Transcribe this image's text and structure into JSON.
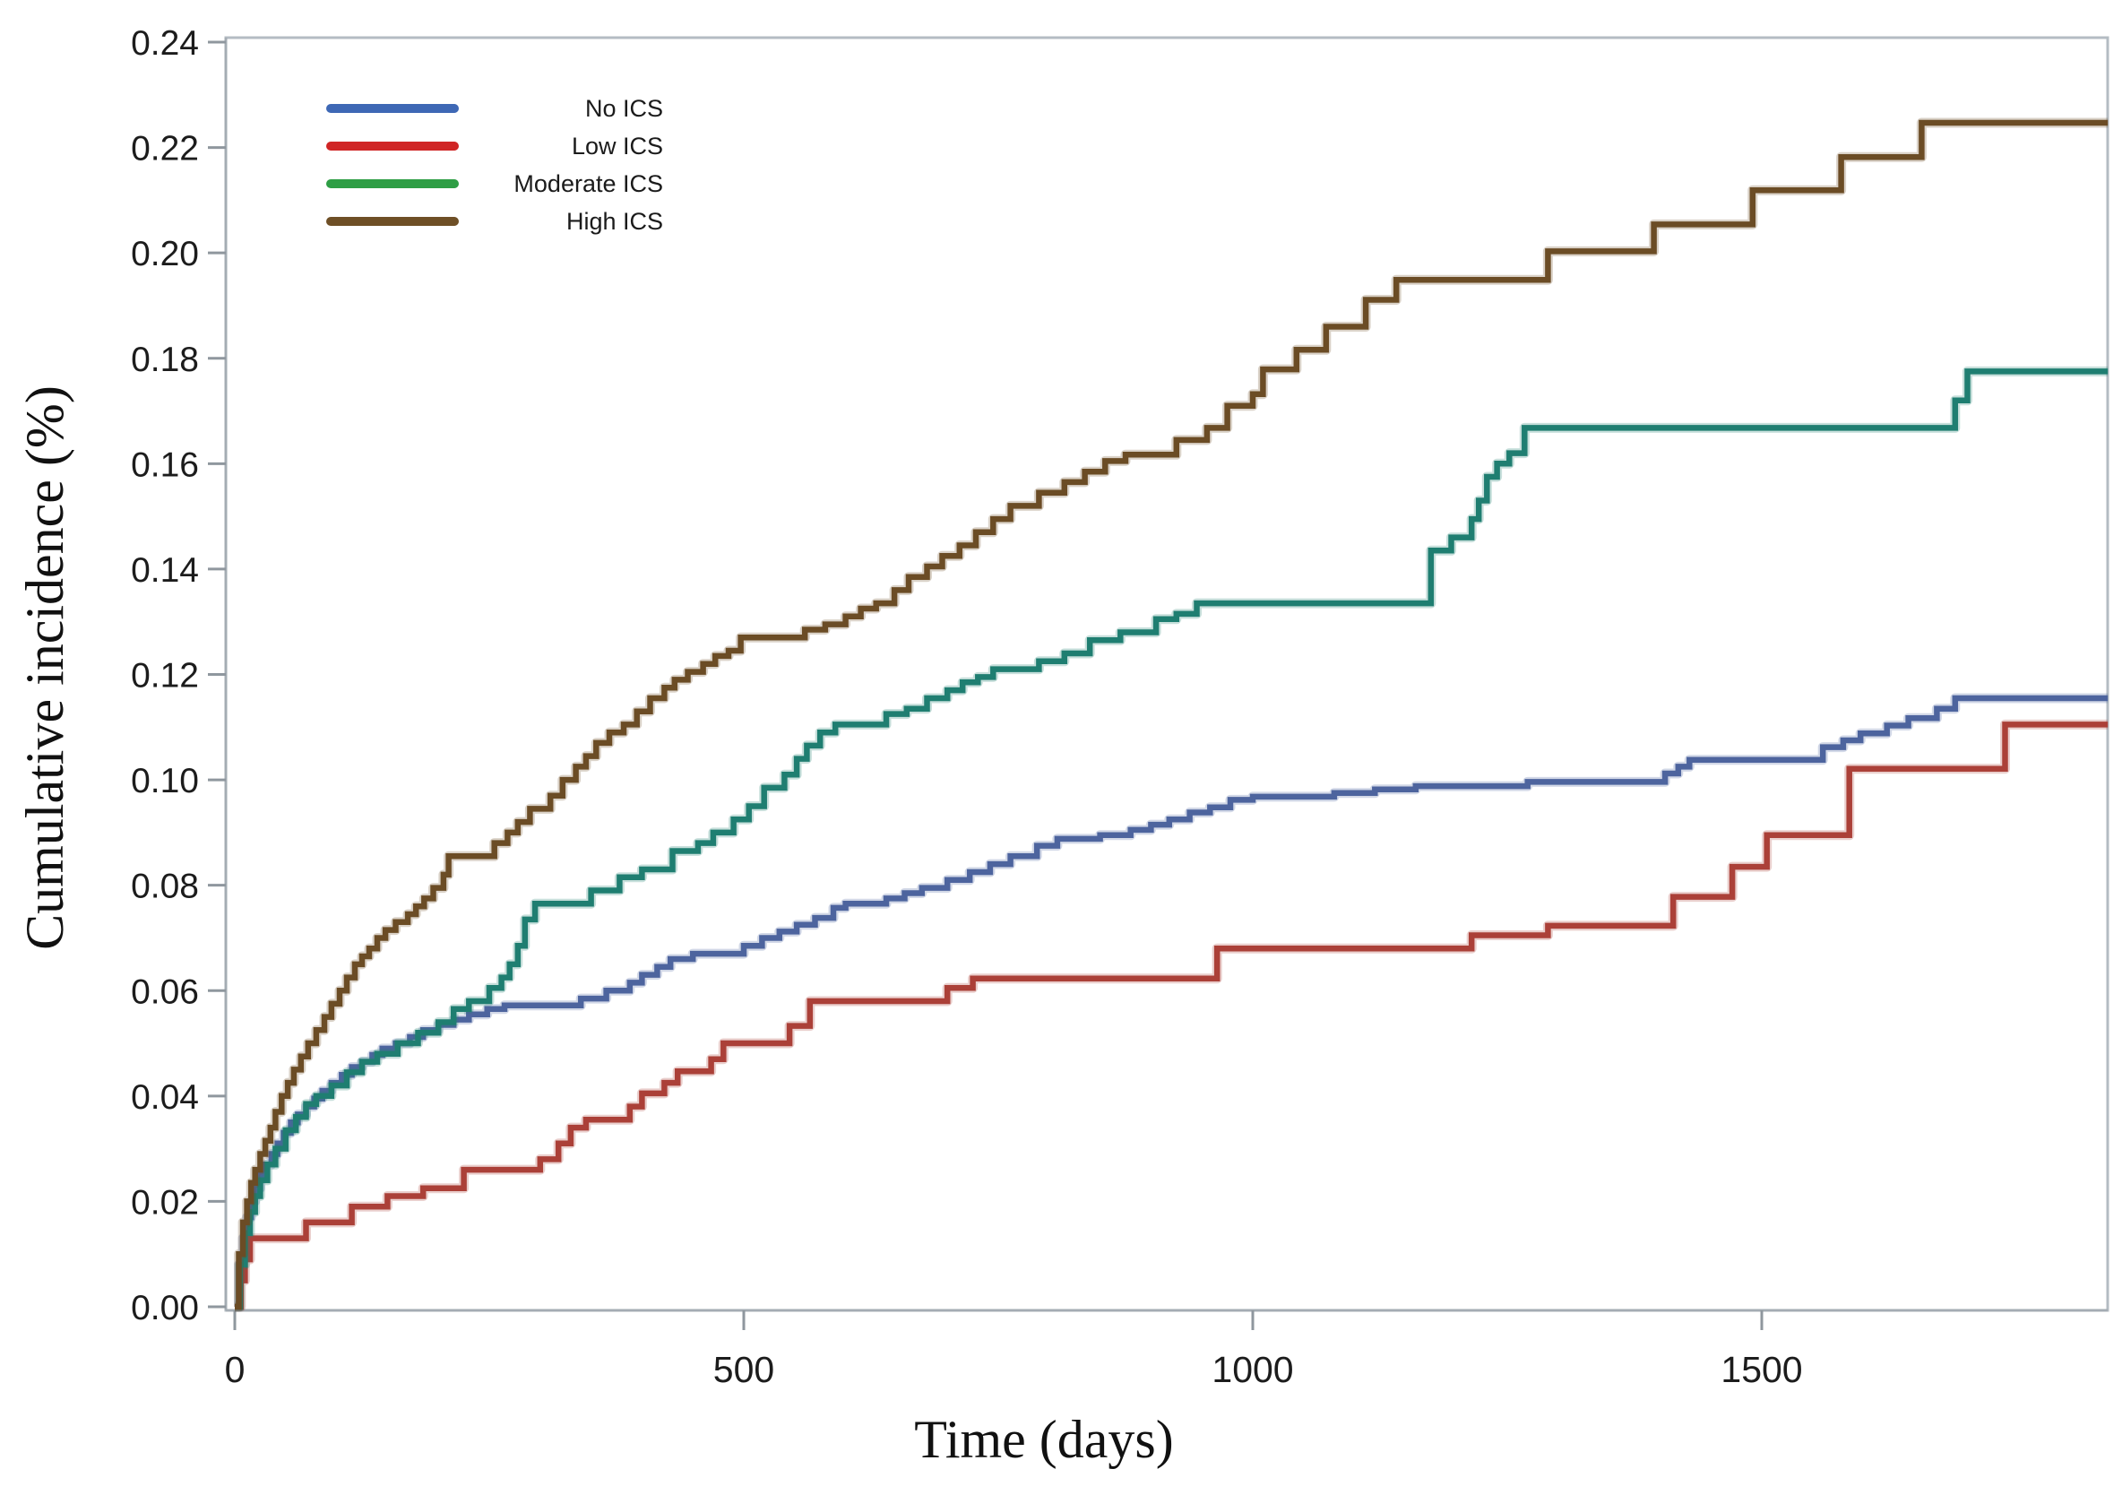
{
  "chart_data": {
    "type": "line",
    "subtype": "step-cumulative-incidence",
    "title": "",
    "xlabel": "Time (days)",
    "ylabel": "Cumulative incidence (%)",
    "xlim": [
      0,
      1840
    ],
    "ylim": [
      0,
      0.24
    ],
    "x_ticks": [
      0,
      500,
      1000,
      1500
    ],
    "y_ticks": [
      0,
      0.02,
      0.04,
      0.06,
      0.08,
      0.1,
      0.12,
      0.14,
      0.16,
      0.18,
      0.2,
      0.22,
      0.24
    ],
    "grid": "off",
    "legend_position": "top-left-inside",
    "style": {
      "frame_color": "#b4bcc3",
      "axis_line_color": "#a4acb3",
      "tick_color": "#8f979e",
      "tick_label_color": "#1c1c1c",
      "background": "#ffffff"
    },
    "series": [
      {
        "name": "No ICS",
        "color": "#4d649e",
        "legend_color": "#3e68b5",
        "points": [
          [
            0,
            0
          ],
          [
            4,
            0.008
          ],
          [
            8,
            0.013
          ],
          [
            12,
            0.017
          ],
          [
            16,
            0.02
          ],
          [
            20,
            0.0225
          ],
          [
            25,
            0.025
          ],
          [
            30,
            0.027
          ],
          [
            36,
            0.029
          ],
          [
            42,
            0.031
          ],
          [
            48,
            0.033
          ],
          [
            55,
            0.035
          ],
          [
            62,
            0.0365
          ],
          [
            70,
            0.038
          ],
          [
            78,
            0.0395
          ],
          [
            86,
            0.041
          ],
          [
            95,
            0.0425
          ],
          [
            105,
            0.044
          ],
          [
            115,
            0.0455
          ],
          [
            125,
            0.0465
          ],
          [
            135,
            0.0478
          ],
          [
            145,
            0.049
          ],
          [
            158,
            0.05
          ],
          [
            172,
            0.0512
          ],
          [
            185,
            0.0525
          ],
          [
            200,
            0.0535
          ],
          [
            215,
            0.0545
          ],
          [
            230,
            0.0555
          ],
          [
            248,
            0.0565
          ],
          [
            265,
            0.0572
          ],
          [
            340,
            0.0585
          ],
          [
            365,
            0.06
          ],
          [
            388,
            0.0615
          ],
          [
            400,
            0.063
          ],
          [
            415,
            0.0645
          ],
          [
            428,
            0.066
          ],
          [
            450,
            0.067
          ],
          [
            500,
            0.0685
          ],
          [
            518,
            0.07
          ],
          [
            535,
            0.0712
          ],
          [
            552,
            0.0725
          ],
          [
            570,
            0.0738
          ],
          [
            588,
            0.0757
          ],
          [
            600,
            0.0765
          ],
          [
            640,
            0.0775
          ],
          [
            658,
            0.0785
          ],
          [
            675,
            0.0795
          ],
          [
            700,
            0.081
          ],
          [
            722,
            0.0825
          ],
          [
            742,
            0.084
          ],
          [
            762,
            0.0855
          ],
          [
            788,
            0.0875
          ],
          [
            808,
            0.0888
          ],
          [
            850,
            0.0895
          ],
          [
            880,
            0.0905
          ],
          [
            900,
            0.0915
          ],
          [
            918,
            0.0925
          ],
          [
            938,
            0.0938
          ],
          [
            958,
            0.0948
          ],
          [
            978,
            0.0962
          ],
          [
            1000,
            0.0968
          ],
          [
            1080,
            0.0975
          ],
          [
            1120,
            0.0982
          ],
          [
            1160,
            0.0988
          ],
          [
            1270,
            0.0996
          ],
          [
            1405,
            0.1012
          ],
          [
            1418,
            0.1025
          ],
          [
            1429,
            0.1038
          ],
          [
            1560,
            0.1062
          ],
          [
            1580,
            0.1075
          ],
          [
            1597,
            0.1088
          ],
          [
            1623,
            0.1103
          ],
          [
            1644,
            0.1117
          ],
          [
            1672,
            0.1135
          ],
          [
            1690,
            0.1155
          ]
        ]
      },
      {
        "name": "Low ICS",
        "color": "#ab4038",
        "legend_color": "#d02525",
        "points": [
          [
            0,
            0
          ],
          [
            6,
            0.005
          ],
          [
            10,
            0.009
          ],
          [
            15,
            0.013
          ],
          [
            70,
            0.016
          ],
          [
            115,
            0.019
          ],
          [
            150,
            0.021
          ],
          [
            185,
            0.0225
          ],
          [
            225,
            0.026
          ],
          [
            300,
            0.028
          ],
          [
            318,
            0.031
          ],
          [
            330,
            0.034
          ],
          [
            345,
            0.0355
          ],
          [
            388,
            0.038
          ],
          [
            400,
            0.0405
          ],
          [
            422,
            0.0425
          ],
          [
            435,
            0.0447
          ],
          [
            468,
            0.047
          ],
          [
            480,
            0.05
          ],
          [
            545,
            0.0533
          ],
          [
            565,
            0.058
          ],
          [
            700,
            0.0605
          ],
          [
            725,
            0.0623
          ],
          [
            965,
            0.068
          ],
          [
            1215,
            0.0705
          ],
          [
            1290,
            0.0723
          ],
          [
            1413,
            0.0778
          ],
          [
            1471,
            0.0835
          ],
          [
            1505,
            0.0895
          ],
          [
            1586,
            0.1021
          ],
          [
            1739,
            0.1105
          ]
        ]
      },
      {
        "name": "Moderate ICS",
        "color": "#1f7e71",
        "legend_color": "#2e9e45",
        "points": [
          [
            0,
            0
          ],
          [
            5,
            0.008
          ],
          [
            10,
            0.014
          ],
          [
            15,
            0.018
          ],
          [
            20,
            0.021
          ],
          [
            25,
            0.024
          ],
          [
            32,
            0.027
          ],
          [
            40,
            0.03
          ],
          [
            50,
            0.0335
          ],
          [
            60,
            0.036
          ],
          [
            70,
            0.0385
          ],
          [
            80,
            0.04
          ],
          [
            95,
            0.042
          ],
          [
            110,
            0.0445
          ],
          [
            125,
            0.0465
          ],
          [
            140,
            0.048
          ],
          [
            160,
            0.05
          ],
          [
            180,
            0.052
          ],
          [
            200,
            0.054
          ],
          [
            215,
            0.0565
          ],
          [
            230,
            0.058
          ],
          [
            250,
            0.0605
          ],
          [
            262,
            0.0625
          ],
          [
            270,
            0.065
          ],
          [
            278,
            0.0685
          ],
          [
            285,
            0.0735
          ],
          [
            295,
            0.0765
          ],
          [
            350,
            0.079
          ],
          [
            378,
            0.0815
          ],
          [
            400,
            0.083
          ],
          [
            430,
            0.0865
          ],
          [
            455,
            0.088
          ],
          [
            470,
            0.09
          ],
          [
            490,
            0.0925
          ],
          [
            505,
            0.095
          ],
          [
            520,
            0.0985
          ],
          [
            540,
            0.101
          ],
          [
            552,
            0.104
          ],
          [
            562,
            0.1065
          ],
          [
            575,
            0.109
          ],
          [
            590,
            0.1105
          ],
          [
            640,
            0.1125
          ],
          [
            660,
            0.1135
          ],
          [
            680,
            0.1155
          ],
          [
            700,
            0.117
          ],
          [
            715,
            0.1185
          ],
          [
            730,
            0.1195
          ],
          [
            745,
            0.121
          ],
          [
            790,
            0.1225
          ],
          [
            815,
            0.124
          ],
          [
            840,
            0.1265
          ],
          [
            870,
            0.128
          ],
          [
            905,
            0.1305
          ],
          [
            925,
            0.1315
          ],
          [
            945,
            0.1335
          ],
          [
            1175,
            0.1435
          ],
          [
            1195,
            0.146
          ],
          [
            1215,
            0.1495
          ],
          [
            1222,
            0.153
          ],
          [
            1230,
            0.1575
          ],
          [
            1240,
            0.16
          ],
          [
            1252,
            0.162
          ],
          [
            1267,
            0.1668
          ],
          [
            1690,
            0.172
          ],
          [
            1702,
            0.1775
          ]
        ]
      },
      {
        "name": "High ICS",
        "color": "#6b4c25",
        "legend_color": "#6e4f26",
        "points": [
          [
            0,
            0
          ],
          [
            4,
            0.01
          ],
          [
            8,
            0.016
          ],
          [
            12,
            0.02
          ],
          [
            16,
            0.0235
          ],
          [
            20,
            0.026
          ],
          [
            25,
            0.029
          ],
          [
            30,
            0.0315
          ],
          [
            35,
            0.034
          ],
          [
            40,
            0.037
          ],
          [
            46,
            0.04
          ],
          [
            52,
            0.0425
          ],
          [
            58,
            0.045
          ],
          [
            65,
            0.0475
          ],
          [
            72,
            0.05
          ],
          [
            80,
            0.0525
          ],
          [
            88,
            0.055
          ],
          [
            95,
            0.0575
          ],
          [
            103,
            0.06
          ],
          [
            110,
            0.0625
          ],
          [
            118,
            0.065
          ],
          [
            125,
            0.0665
          ],
          [
            132,
            0.068
          ],
          [
            140,
            0.07
          ],
          [
            148,
            0.0715
          ],
          [
            158,
            0.073
          ],
          [
            170,
            0.0745
          ],
          [
            178,
            0.076
          ],
          [
            186,
            0.0775
          ],
          [
            195,
            0.0795
          ],
          [
            205,
            0.082
          ],
          [
            210,
            0.0855
          ],
          [
            255,
            0.088
          ],
          [
            268,
            0.09
          ],
          [
            278,
            0.092
          ],
          [
            290,
            0.0945
          ],
          [
            310,
            0.097
          ],
          [
            322,
            0.1
          ],
          [
            335,
            0.1025
          ],
          [
            345,
            0.1045
          ],
          [
            355,
            0.107
          ],
          [
            368,
            0.109
          ],
          [
            382,
            0.1105
          ],
          [
            395,
            0.113
          ],
          [
            408,
            0.1155
          ],
          [
            422,
            0.1175
          ],
          [
            432,
            0.119
          ],
          [
            445,
            0.1205
          ],
          [
            460,
            0.122
          ],
          [
            472,
            0.1235
          ],
          [
            485,
            0.1245
          ],
          [
            497,
            0.127
          ],
          [
            560,
            0.1285
          ],
          [
            580,
            0.1295
          ],
          [
            600,
            0.131
          ],
          [
            615,
            0.1325
          ],
          [
            630,
            0.1335
          ],
          [
            648,
            0.136
          ],
          [
            662,
            0.1385
          ],
          [
            680,
            0.1405
          ],
          [
            695,
            0.1425
          ],
          [
            712,
            0.1445
          ],
          [
            728,
            0.147
          ],
          [
            745,
            0.1495
          ],
          [
            762,
            0.152
          ],
          [
            790,
            0.1545
          ],
          [
            815,
            0.1565
          ],
          [
            835,
            0.1585
          ],
          [
            855,
            0.1605
          ],
          [
            875,
            0.1617
          ],
          [
            925,
            0.1645
          ],
          [
            955,
            0.1668
          ],
          [
            975,
            0.171
          ],
          [
            1000,
            0.1732
          ],
          [
            1010,
            0.1779
          ],
          [
            1043,
            0.1816
          ],
          [
            1072,
            0.186
          ],
          [
            1111,
            0.1911
          ],
          [
            1141,
            0.1949
          ],
          [
            1290,
            0.2003
          ],
          [
            1394,
            0.2054
          ],
          [
            1491,
            0.2119
          ],
          [
            1578,
            0.2182
          ],
          [
            1657,
            0.2247
          ]
        ]
      }
    ]
  }
}
